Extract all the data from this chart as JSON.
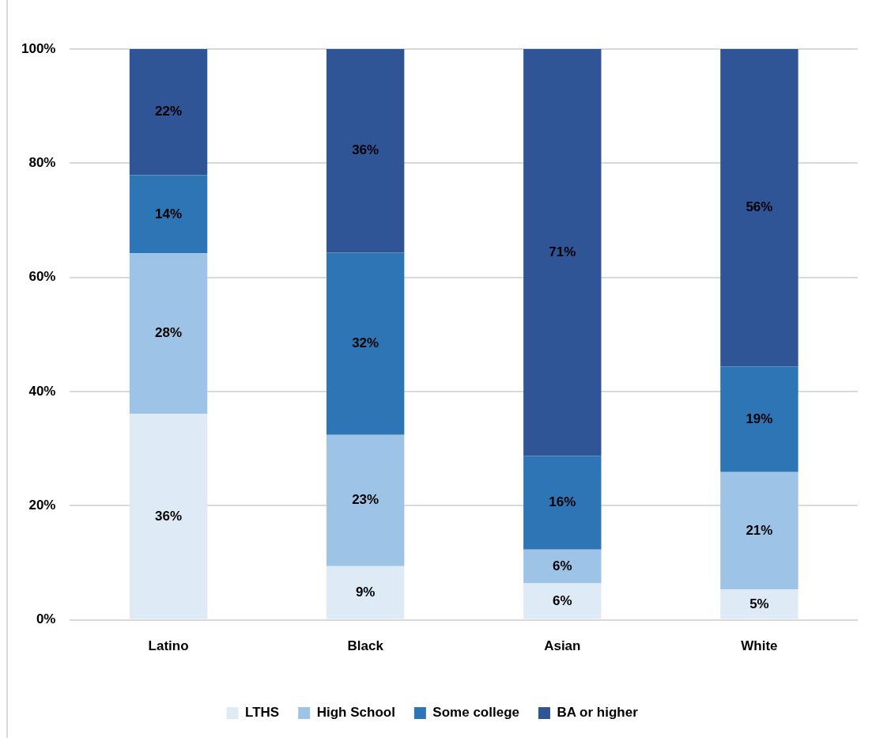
{
  "chart_data": {
    "type": "bar",
    "stacked": true,
    "categories": [
      "Latino",
      "Black",
      "Asian",
      "White"
    ],
    "series": [
      {
        "name": "LTHS",
        "color": "#deebf7",
        "values": [
          36.1,
          9.4,
          6.4,
          5.3
        ],
        "value_labels": [
          "36%",
          "9%",
          "6%",
          "5%"
        ]
      },
      {
        "name": "High School",
        "color": "#9dc3e6",
        "values": [
          28.1,
          23.0,
          5.9,
          20.6
        ],
        "value_labels": [
          "28%",
          "23%",
          "6%",
          "21%"
        ]
      },
      {
        "name": "Some college",
        "color": "#2e75b6",
        "values": [
          13.7,
          31.9,
          16.4,
          18.5
        ],
        "value_labels": [
          "14%",
          "32%",
          "16%",
          "19%"
        ]
      },
      {
        "name": "BA or higher",
        "color": "#2f5597",
        "values": [
          22.1,
          35.7,
          71.3,
          55.6
        ],
        "value_labels": [
          "22%",
          "36%",
          "71%",
          "56%"
        ]
      }
    ],
    "ylim": [
      0,
      100
    ],
    "yticks": [
      {
        "value": 0,
        "label": "0%"
      },
      {
        "value": 20,
        "label": "20%"
      },
      {
        "value": 40,
        "label": "40%"
      },
      {
        "value": 60,
        "label": "60%"
      },
      {
        "value": 80,
        "label": "80%"
      },
      {
        "value": 100,
        "label": "100%"
      }
    ],
    "grid": "y",
    "legend": "bottom"
  }
}
